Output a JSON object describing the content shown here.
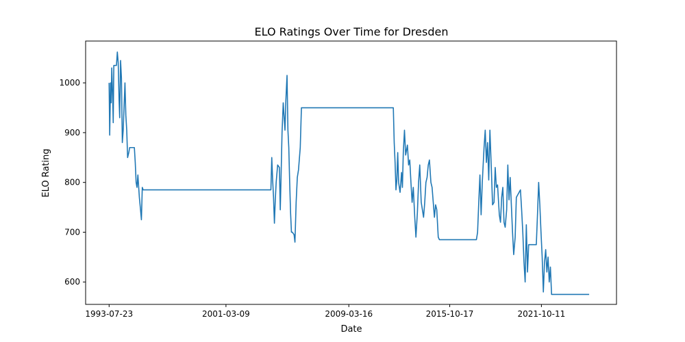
{
  "chart_data": {
    "type": "line",
    "title": "ELO Ratings Over Time for Dresden",
    "xlabel": "Date",
    "ylabel": "ELO Rating",
    "xlim": [
      "1992-01-10",
      "2026-09-05"
    ],
    "ylim": [
      555,
      1084
    ],
    "xticks": [
      "1993-07-23",
      "2001-03-09",
      "2009-03-16",
      "2015-10-17",
      "2021-10-11"
    ],
    "yticks": [
      600,
      700,
      800,
      900,
      1000
    ],
    "grid": false,
    "legend": "none",
    "line_color": "#1f77b4",
    "points": [
      [
        "1993-07-23",
        1000
      ],
      [
        "1993-08-06",
        895
      ],
      [
        "1993-08-27",
        1000
      ],
      [
        "1993-09-10",
        960
      ],
      [
        "1993-09-24",
        1030
      ],
      [
        "1993-10-15",
        975
      ],
      [
        "1993-10-29",
        920
      ],
      [
        "1993-11-12",
        1035
      ],
      [
        "1994-01-14",
        1035
      ],
      [
        "1994-02-04",
        1062
      ],
      [
        "1994-02-25",
        1040
      ],
      [
        "1994-03-18",
        965
      ],
      [
        "1994-04-01",
        930
      ],
      [
        "1994-04-22",
        1045
      ],
      [
        "1994-05-13",
        1010
      ],
      [
        "1994-06-03",
        880
      ],
      [
        "1994-06-24",
        905
      ],
      [
        "1994-08-05",
        1000
      ],
      [
        "1994-08-26",
        935
      ],
      [
        "1994-09-16",
        905
      ],
      [
        "1994-10-07",
        850
      ],
      [
        "1994-11-04",
        860
      ],
      [
        "1994-11-25",
        870
      ],
      [
        "1995-03-17",
        870
      ],
      [
        "1995-04-07",
        840
      ],
      [
        "1995-04-28",
        800
      ],
      [
        "1995-05-19",
        790
      ],
      [
        "1995-06-09",
        815
      ],
      [
        "1995-07-14",
        770
      ],
      [
        "1995-08-11",
        745
      ],
      [
        "1995-09-01",
        725
      ],
      [
        "1995-09-22",
        790
      ],
      [
        "1995-10-13",
        785
      ],
      [
        "2004-02-13",
        785
      ],
      [
        "2004-03-05",
        850
      ],
      [
        "2004-03-26",
        805
      ],
      [
        "2004-04-16",
        770
      ],
      [
        "2004-05-07",
        718
      ],
      [
        "2004-05-28",
        765
      ],
      [
        "2004-06-18",
        800
      ],
      [
        "2004-07-23",
        835
      ],
      [
        "2004-09-03",
        830
      ],
      [
        "2004-09-24",
        745
      ],
      [
        "2004-10-15",
        820
      ],
      [
        "2004-11-05",
        900
      ],
      [
        "2004-12-03",
        960
      ],
      [
        "2005-01-14",
        905
      ],
      [
        "2005-02-04",
        965
      ],
      [
        "2005-03-04",
        1015
      ],
      [
        "2005-03-25",
        905
      ],
      [
        "2005-04-15",
        870
      ],
      [
        "2005-05-06",
        800
      ],
      [
        "2005-05-27",
        740
      ],
      [
        "2005-06-17",
        700
      ],
      [
        "2005-07-08",
        700
      ],
      [
        "2005-08-19",
        695
      ],
      [
        "2005-09-09",
        680
      ],
      [
        "2005-10-07",
        760
      ],
      [
        "2005-11-04",
        810
      ],
      [
        "2005-12-02",
        825
      ],
      [
        "2006-01-13",
        870
      ],
      [
        "2006-02-10",
        950
      ],
      [
        "2012-02-10",
        950
      ],
      [
        "2012-03-02",
        880
      ],
      [
        "2012-03-23",
        840
      ],
      [
        "2012-04-13",
        785
      ],
      [
        "2012-05-04",
        805
      ],
      [
        "2012-05-25",
        860
      ],
      [
        "2012-06-15",
        800
      ],
      [
        "2012-07-20",
        780
      ],
      [
        "2012-08-24",
        820
      ],
      [
        "2012-09-14",
        790
      ],
      [
        "2012-10-05",
        860
      ],
      [
        "2012-11-02",
        905
      ],
      [
        "2012-11-30",
        855
      ],
      [
        "2013-01-11",
        875
      ],
      [
        "2013-02-08",
        835
      ],
      [
        "2013-03-08",
        845
      ],
      [
        "2013-04-05",
        800
      ],
      [
        "2013-05-03",
        760
      ],
      [
        "2013-05-31",
        790
      ],
      [
        "2013-07-05",
        730
      ],
      [
        "2013-08-02",
        690
      ],
      [
        "2013-09-06",
        740
      ],
      [
        "2013-10-04",
        800
      ],
      [
        "2013-11-01",
        835
      ],
      [
        "2013-12-06",
        760
      ],
      [
        "2014-01-31",
        730
      ],
      [
        "2014-02-28",
        760
      ],
      [
        "2014-03-28",
        800
      ],
      [
        "2014-04-25",
        810
      ],
      [
        "2014-05-23",
        835
      ],
      [
        "2014-06-20",
        845
      ],
      [
        "2014-07-25",
        800
      ],
      [
        "2014-08-22",
        790
      ],
      [
        "2014-09-19",
        760
      ],
      [
        "2014-10-17",
        730
      ],
      [
        "2014-11-14",
        755
      ],
      [
        "2014-12-12",
        745
      ],
      [
        "2015-01-16",
        690
      ],
      [
        "2015-02-13",
        685
      ],
      [
        "2017-07-14",
        685
      ],
      [
        "2017-08-11",
        700
      ],
      [
        "2017-09-08",
        760
      ],
      [
        "2017-10-06",
        815
      ],
      [
        "2017-11-03",
        735
      ],
      [
        "2017-12-01",
        800
      ],
      [
        "2018-01-12",
        870
      ],
      [
        "2018-02-09",
        905
      ],
      [
        "2018-03-09",
        840
      ],
      [
        "2018-04-06",
        880
      ],
      [
        "2018-05-04",
        805
      ],
      [
        "2018-06-01",
        905
      ],
      [
        "2018-07-06",
        825
      ],
      [
        "2018-08-03",
        755
      ],
      [
        "2018-09-07",
        760
      ],
      [
        "2018-10-05",
        830
      ],
      [
        "2018-11-02",
        790
      ],
      [
        "2018-11-30",
        795
      ],
      [
        "2019-01-11",
        735
      ],
      [
        "2019-02-08",
        720
      ],
      [
        "2019-03-08",
        770
      ],
      [
        "2019-04-05",
        790
      ],
      [
        "2019-05-03",
        720
      ],
      [
        "2019-05-31",
        710
      ],
      [
        "2019-07-05",
        745
      ],
      [
        "2019-08-02",
        835
      ],
      [
        "2019-08-30",
        765
      ],
      [
        "2019-09-27",
        810
      ],
      [
        "2019-10-25",
        755
      ],
      [
        "2019-11-22",
        700
      ],
      [
        "2019-12-20",
        655
      ],
      [
        "2020-01-24",
        690
      ],
      [
        "2020-02-21",
        770
      ],
      [
        "2020-05-29",
        785
      ],
      [
        "2020-06-26",
        745
      ],
      [
        "2020-07-24",
        700
      ],
      [
        "2020-08-21",
        640
      ],
      [
        "2020-09-18",
        600
      ],
      [
        "2020-10-16",
        715
      ],
      [
        "2020-11-13",
        620
      ],
      [
        "2020-12-11",
        675
      ],
      [
        "2021-06-11",
        675
      ],
      [
        "2021-07-09",
        735
      ],
      [
        "2021-08-06",
        800
      ],
      [
        "2021-09-03",
        755
      ],
      [
        "2021-10-01",
        700
      ],
      [
        "2021-10-29",
        650
      ],
      [
        "2021-11-26",
        580
      ],
      [
        "2021-12-24",
        640
      ],
      [
        "2022-01-21",
        665
      ],
      [
        "2022-02-18",
        620
      ],
      [
        "2022-03-18",
        650
      ],
      [
        "2022-04-15",
        600
      ],
      [
        "2022-05-13",
        630
      ],
      [
        "2022-06-10",
        575
      ],
      [
        "2024-11-22",
        575
      ]
    ]
  }
}
